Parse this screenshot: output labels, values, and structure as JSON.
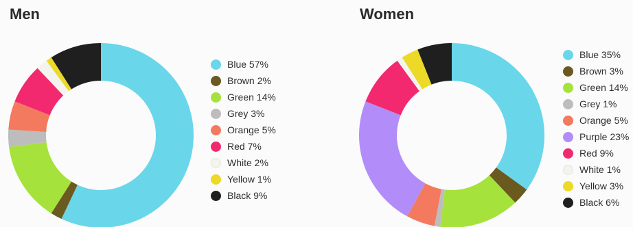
{
  "chart_data": [
    {
      "type": "pie",
      "title": "Men",
      "slices": [
        {
          "label": "Blue",
          "value": 57,
          "display": "Blue 57%",
          "color": "#69d6ea"
        },
        {
          "label": "Brown",
          "value": 2,
          "display": "Brown 2%",
          "color": "#6a5a1f"
        },
        {
          "label": "Green",
          "value": 14,
          "display": "Green 14%",
          "color": "#a6e23c"
        },
        {
          "label": "Grey",
          "value": 3,
          "display": "Grey 3%",
          "color": "#bdbdbd"
        },
        {
          "label": "Orange",
          "value": 5,
          "display": "Orange 5%",
          "color": "#f47a5f"
        },
        {
          "label": "Red",
          "value": 7,
          "display": "Red 7%",
          "color": "#f2296f"
        },
        {
          "label": "White",
          "value": 2,
          "display": "White 2%",
          "color": "#f4f4ee"
        },
        {
          "label": "Yellow",
          "value": 1,
          "display": "Yellow 1%",
          "color": "#ecd928"
        },
        {
          "label": "Black",
          "value": 9,
          "display": "Black 9%",
          "color": "#1f1f1f"
        }
      ],
      "legend_position": "right"
    },
    {
      "type": "pie",
      "title": "Women",
      "slices": [
        {
          "label": "Blue",
          "value": 35,
          "display": "Blue 35%",
          "color": "#69d6ea"
        },
        {
          "label": "Brown",
          "value": 3,
          "display": "Brown 3%",
          "color": "#6a5a1f"
        },
        {
          "label": "Green",
          "value": 14,
          "display": "Green 14%",
          "color": "#a6e23c"
        },
        {
          "label": "Grey",
          "value": 1,
          "display": "Grey 1%",
          "color": "#bdbdbd"
        },
        {
          "label": "Orange",
          "value": 5,
          "display": "Orange 5%",
          "color": "#f47a5f"
        },
        {
          "label": "Purple",
          "value": 23,
          "display": "Purple 23%",
          "color": "#b28cf9"
        },
        {
          "label": "Red",
          "value": 9,
          "display": "Red 9%",
          "color": "#f2296f"
        },
        {
          "label": "White",
          "value": 1,
          "display": "White 1%",
          "color": "#f4f4ee"
        },
        {
          "label": "Yellow",
          "value": 3,
          "display": "Yellow 3%",
          "color": "#ecd928"
        },
        {
          "label": "Black",
          "value": 6,
          "display": "Black 6%",
          "color": "#1f1f1f"
        }
      ],
      "legend_position": "right"
    }
  ]
}
